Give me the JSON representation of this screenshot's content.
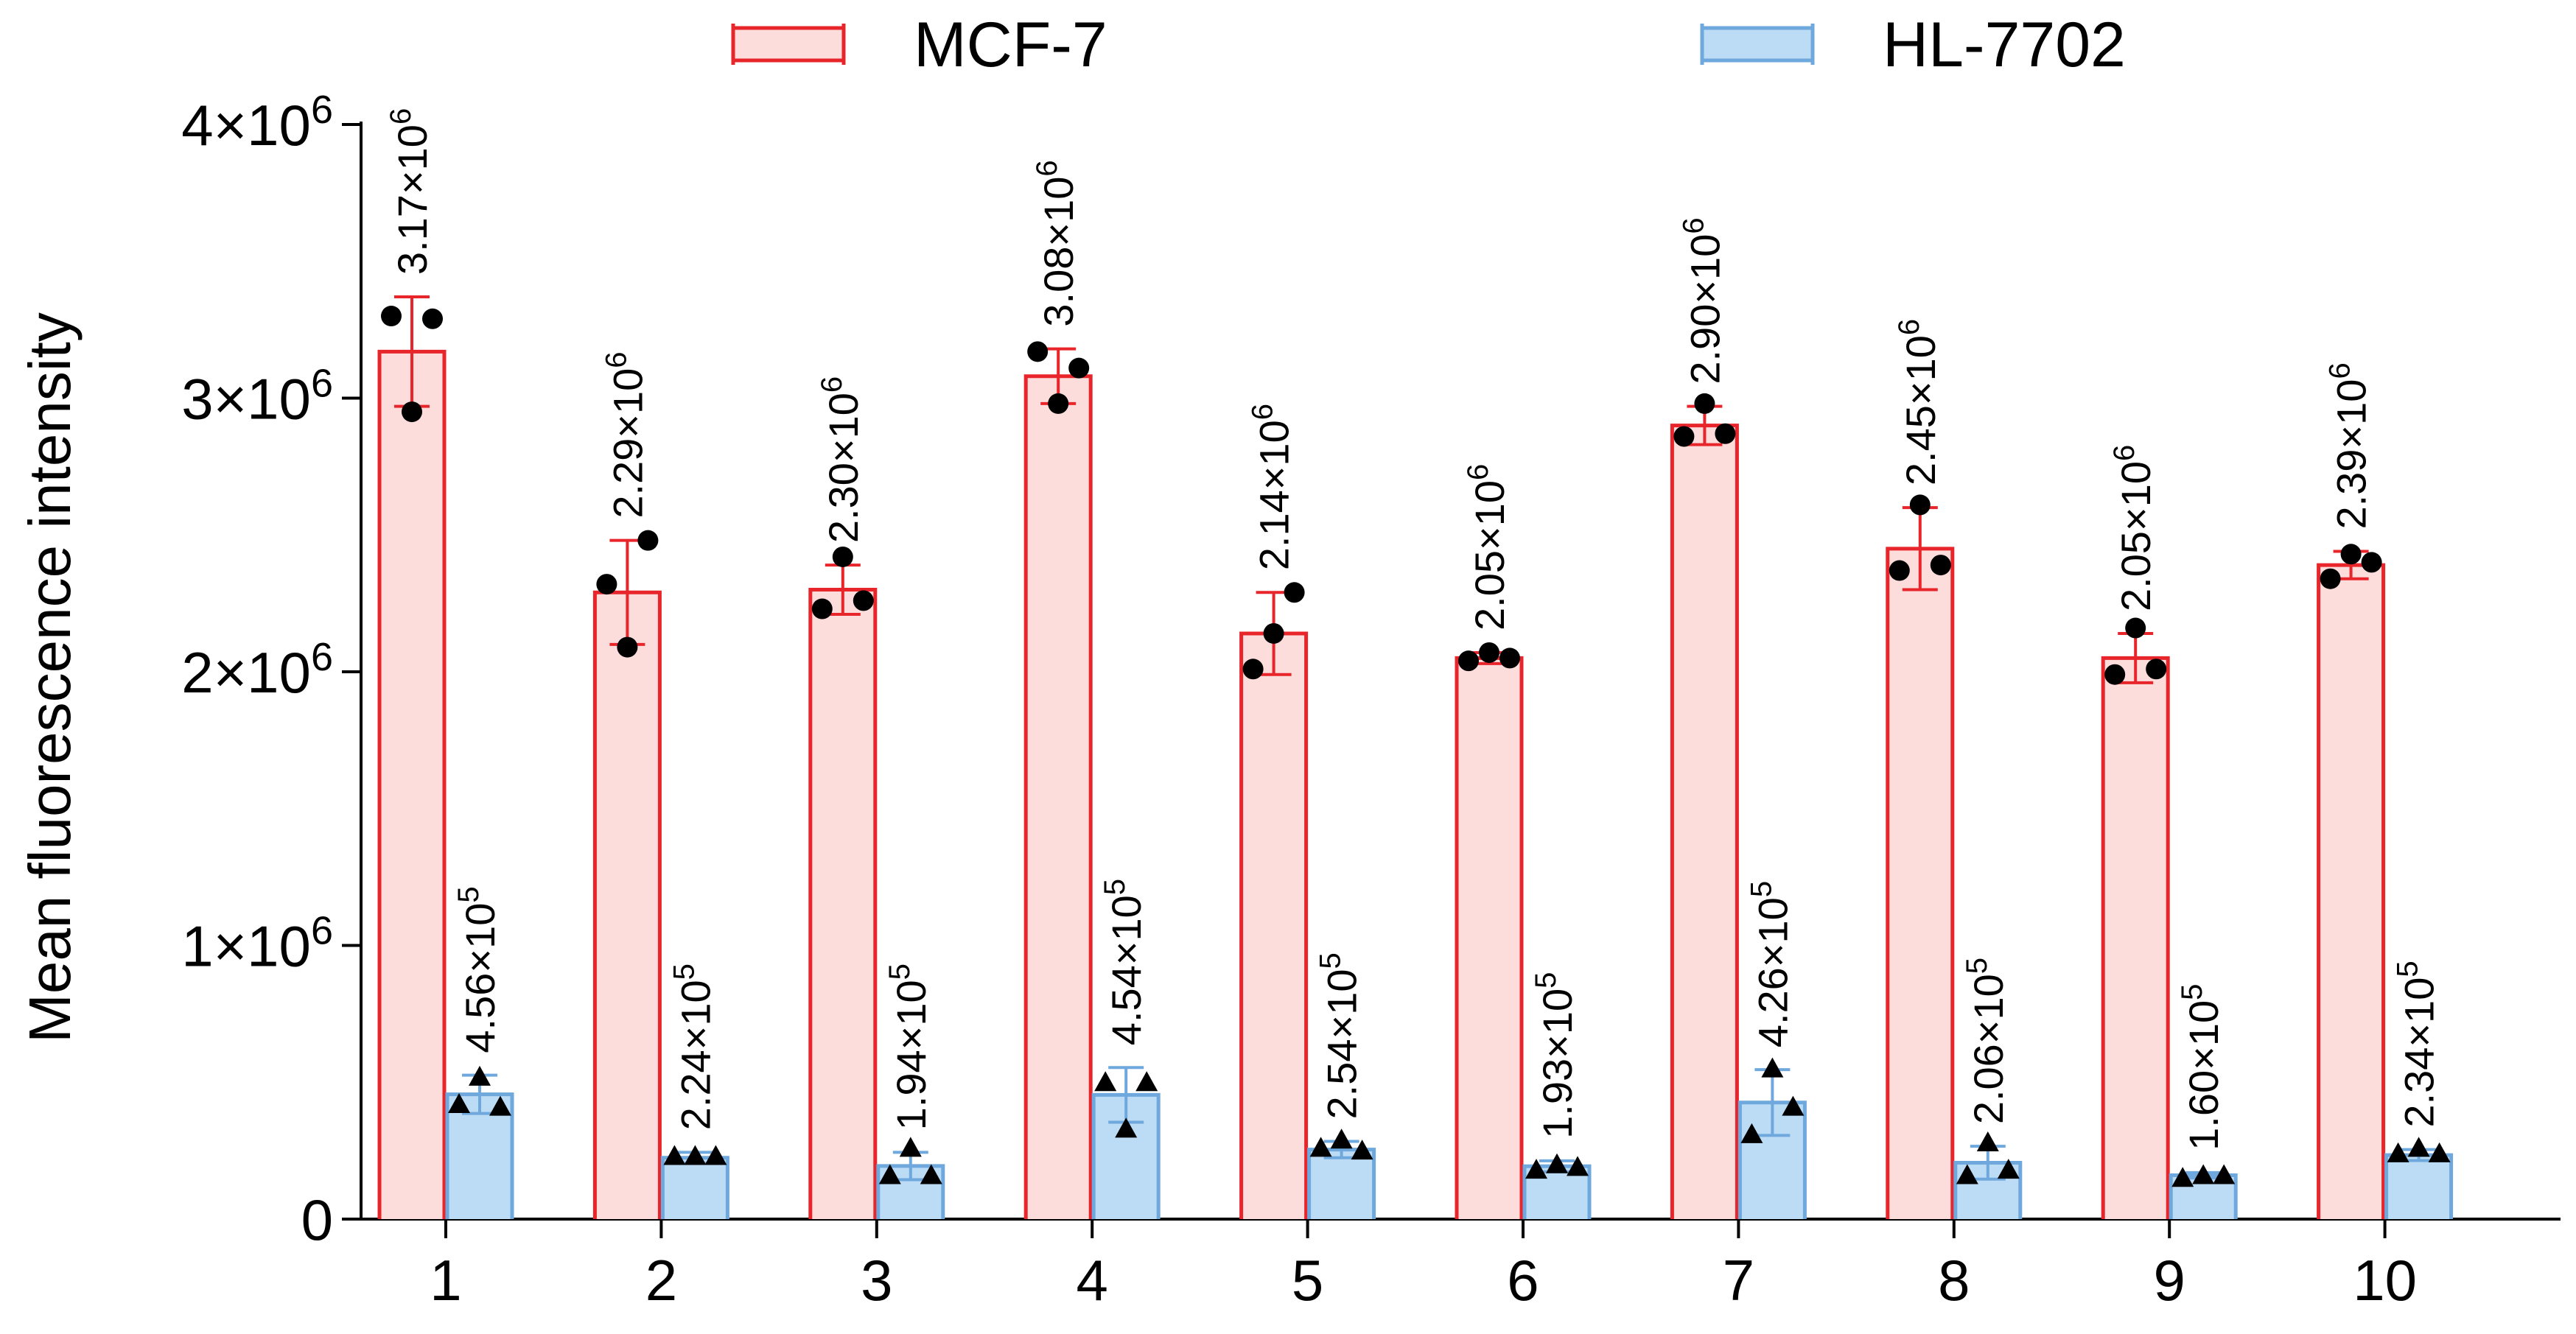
{
  "chart_data": {
    "type": "bar",
    "title": "",
    "xlabel": "",
    "ylabel": "Mean fluorescence intensity",
    "ylim": [
      0,
      4000000
    ],
    "yticks": [
      {
        "value": 0,
        "label": "0"
      },
      {
        "value": 1000000,
        "label": "1×10",
        "exp": "6"
      },
      {
        "value": 2000000,
        "label": "2×10",
        "exp": "6"
      },
      {
        "value": 3000000,
        "label": "3×10",
        "exp": "6"
      },
      {
        "value": 4000000,
        "label": "4×10",
        "exp": "6"
      }
    ],
    "categories": [
      "1",
      "2",
      "3",
      "4",
      "5",
      "6",
      "7",
      "8",
      "9",
      "10"
    ],
    "legend_position": "top",
    "series": [
      {
        "name": "MCF-7",
        "fill": "#fddcdc",
        "stroke": "#e8252a",
        "marker": "circle",
        "values": [
          3170000,
          2290000,
          2300000,
          3080000,
          2140000,
          2050000,
          2900000,
          2450000,
          2050000,
          2390000
        ],
        "errors": [
          200000,
          190000,
          90000,
          100000,
          150000,
          20000,
          70000,
          150000,
          90000,
          50000
        ],
        "points": [
          [
            3300000,
            2950000,
            3290000
          ],
          [
            2320000,
            2090000,
            2480000
          ],
          [
            2230000,
            2420000,
            2260000
          ],
          [
            3170000,
            2980000,
            3110000
          ],
          [
            2010000,
            2140000,
            2290000
          ],
          [
            2040000,
            2070000,
            2050000
          ],
          [
            2860000,
            2980000,
            2870000
          ],
          [
            2370000,
            2610000,
            2390000
          ],
          [
            1990000,
            2160000,
            2010000
          ],
          [
            2340000,
            2430000,
            2400000
          ]
        ],
        "labels": [
          {
            "base": "3.17×10",
            "exp": "6"
          },
          {
            "base": "2.29×10",
            "exp": "6"
          },
          {
            "base": "2.30×10",
            "exp": "6"
          },
          {
            "base": "3.08×10",
            "exp": "6"
          },
          {
            "base": "2.14×10",
            "exp": "6"
          },
          {
            "base": "2.05×10",
            "exp": "6"
          },
          {
            "base": "2.90×10",
            "exp": "6"
          },
          {
            "base": "2.45×10",
            "exp": "6"
          },
          {
            "base": "2.05×10",
            "exp": "6"
          },
          {
            "base": "2.39×10",
            "exp": "6"
          }
        ]
      },
      {
        "name": "HL-7702",
        "fill": "#bcdcf6",
        "stroke": "#6fa8dc",
        "marker": "triangle",
        "values": [
          456000,
          224000,
          194000,
          454000,
          254000,
          193000,
          426000,
          206000,
          160000,
          234000
        ],
        "errors": [
          70000,
          20000,
          50000,
          100000,
          30000,
          20000,
          120000,
          60000,
          10000,
          20000
        ],
        "points": [
          [
            420000,
            520000,
            410000
          ],
          [
            230000,
            230000,
            230000
          ],
          [
            160000,
            260000,
            160000
          ],
          [
            500000,
            330000,
            500000
          ],
          [
            260000,
            290000,
            250000
          ],
          [
            180000,
            200000,
            190000
          ],
          [
            310000,
            550000,
            410000
          ],
          [
            160000,
            280000,
            180000
          ],
          [
            150000,
            160000,
            160000
          ],
          [
            240000,
            260000,
            240000
          ]
        ],
        "labels": [
          {
            "base": "4.56×10",
            "exp": "5"
          },
          {
            "base": "2.24×10",
            "exp": "5"
          },
          {
            "base": "1.94×10",
            "exp": "5"
          },
          {
            "base": "4.54×10",
            "exp": "5"
          },
          {
            "base": "2.54×10",
            "exp": "5"
          },
          {
            "base": "1.93×10",
            "exp": "5"
          },
          {
            "base": "4.26×10",
            "exp": "5"
          },
          {
            "base": "2.06×10",
            "exp": "5"
          },
          {
            "base": "1.60×10",
            "exp": "5"
          },
          {
            "base": "2.34×10",
            "exp": "5"
          }
        ]
      }
    ]
  }
}
